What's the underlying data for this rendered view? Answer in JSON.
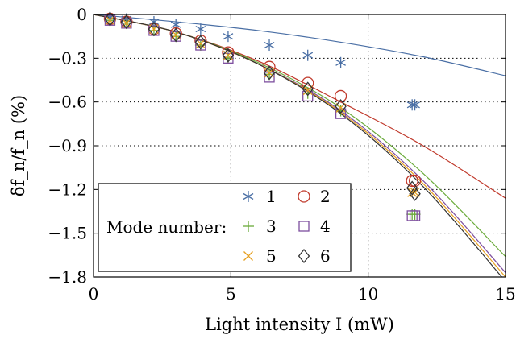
{
  "chart_data": {
    "type": "scatter",
    "title": "",
    "xlabel": "Light intensity I (mW)",
    "ylabel": "δf_n/f_n (%)",
    "xlim": [
      0,
      15
    ],
    "ylim": [
      -1.8,
      0
    ],
    "x_ticks": [
      "0",
      "5",
      "10",
      "15"
    ],
    "y_ticks": [
      "0",
      "−0.3",
      "−0.6",
      "−0.9",
      "−1.2",
      "−1.5",
      "−1.8"
    ],
    "grid": "dotted",
    "legend": {
      "position": "bottom-left",
      "label": "Mode number:",
      "entries": [
        "1",
        "2",
        "3",
        "4",
        "5",
        "6"
      ]
    },
    "series": [
      {
        "name": "1",
        "marker": "asterisk",
        "color": "#4a6fa5",
        "x": [
          0.6,
          1.2,
          2.2,
          3.0,
          3.9,
          4.9,
          6.4,
          7.8,
          9.0,
          11.6,
          11.7
        ],
        "y": [
          -0.02,
          -0.03,
          -0.05,
          -0.07,
          -0.1,
          -0.15,
          -0.21,
          -0.28,
          -0.33,
          -0.62,
          -0.62
        ],
        "fit": [
          [
            0,
            0
          ],
          [
            3,
            -0.05
          ],
          [
            6,
            -0.11
          ],
          [
            9,
            -0.19
          ],
          [
            12,
            -0.29
          ],
          [
            15,
            -0.42
          ]
        ]
      },
      {
        "name": "2",
        "marker": "circle",
        "color": "#c0392b",
        "x": [
          0.6,
          1.2,
          2.2,
          3.0,
          3.9,
          4.9,
          6.4,
          7.8,
          9.0,
          11.6,
          11.7
        ],
        "y": [
          -0.03,
          -0.05,
          -0.1,
          -0.13,
          -0.18,
          -0.26,
          -0.36,
          -0.47,
          -0.56,
          -1.14,
          -1.14
        ],
        "fit": [
          [
            0,
            0
          ],
          [
            3,
            -0.12
          ],
          [
            6,
            -0.32
          ],
          [
            9,
            -0.6
          ],
          [
            12,
            -0.9
          ],
          [
            15,
            -1.26
          ]
        ]
      },
      {
        "name": "3",
        "marker": "plus",
        "color": "#6aaa3a",
        "x": [
          0.6,
          1.2,
          2.2,
          3.0,
          3.9,
          4.9,
          6.4,
          7.8,
          9.0,
          11.6,
          11.7
        ],
        "y": [
          -0.04,
          -0.06,
          -0.11,
          -0.15,
          -0.21,
          -0.3,
          -0.41,
          -0.54,
          -0.66,
          -1.37,
          -1.37
        ],
        "fit": [
          [
            0,
            0
          ],
          [
            3,
            -0.12
          ],
          [
            6,
            -0.33
          ],
          [
            9,
            -0.64
          ],
          [
            12,
            -1.09
          ],
          [
            15,
            -1.66
          ]
        ]
      },
      {
        "name": "4",
        "marker": "square",
        "color": "#7d4e9e",
        "x": [
          0.6,
          1.2,
          2.2,
          3.0,
          3.9,
          4.9,
          6.4,
          7.8,
          9.0,
          11.6,
          11.7
        ],
        "y": [
          -0.04,
          -0.06,
          -0.11,
          -0.15,
          -0.21,
          -0.3,
          -0.43,
          -0.56,
          -0.68,
          -1.38,
          -1.38
        ],
        "fit": [
          [
            0,
            0
          ],
          [
            3,
            -0.12
          ],
          [
            6,
            -0.34
          ],
          [
            9,
            -0.66
          ],
          [
            12,
            -1.14
          ],
          [
            15,
            -1.77
          ]
        ]
      },
      {
        "name": "5",
        "marker": "cross",
        "color": "#e6a020",
        "x": [
          0.6,
          1.2,
          2.2,
          3.0,
          3.9,
          4.9,
          6.4,
          7.8,
          9.0,
          11.6,
          11.7
        ],
        "y": [
          -0.04,
          -0.06,
          -0.1,
          -0.14,
          -0.2,
          -0.28,
          -0.4,
          -0.52,
          -0.64,
          -1.22,
          -1.22
        ],
        "fit": [
          [
            0,
            0
          ],
          [
            3,
            -0.12
          ],
          [
            6,
            -0.34
          ],
          [
            9,
            -0.67
          ],
          [
            12,
            -1.16
          ],
          [
            15,
            -1.8
          ]
        ]
      },
      {
        "name": "6",
        "marker": "diamond",
        "color": "#333333",
        "x": [
          0.6,
          1.2,
          2.2,
          3.0,
          3.9,
          4.9,
          6.4,
          7.8,
          9.0,
          11.6,
          11.7
        ],
        "y": [
          -0.03,
          -0.05,
          -0.1,
          -0.14,
          -0.19,
          -0.28,
          -0.4,
          -0.51,
          -0.63,
          -1.19,
          -1.23
        ],
        "fit": [
          [
            0,
            0
          ],
          [
            3,
            -0.12
          ],
          [
            6,
            -0.34
          ],
          [
            9,
            -0.68
          ],
          [
            12,
            -1.18
          ],
          [
            15,
            -1.83
          ]
        ]
      }
    ]
  }
}
